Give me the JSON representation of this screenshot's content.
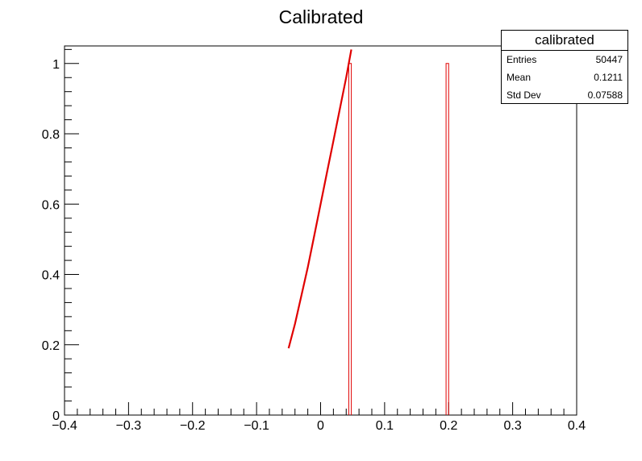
{
  "chart_data": {
    "type": "histogram",
    "title": "Calibrated",
    "xlabel": "",
    "ylabel": "",
    "xlim": [
      -0.4,
      0.4
    ],
    "ylim": [
      0,
      1.05
    ],
    "x_ticks": [
      -0.4,
      -0.3,
      -0.2,
      -0.1,
      0,
      0.1,
      0.2,
      0.3,
      0.4
    ],
    "x_tick_labels": [
      "−0.4",
      "−0.3",
      "−0.2",
      "−0.1",
      "0",
      "0.1",
      "0.2",
      "0.3",
      "0.4"
    ],
    "y_ticks": [
      0,
      0.2,
      0.4,
      0.6,
      0.8,
      1
    ],
    "y_tick_labels": [
      "0",
      "0.2",
      "0.4",
      "0.6",
      "0.8",
      "1"
    ],
    "bins": [
      {
        "x_low": 0.044,
        "x_high": 0.048,
        "value": 1
      },
      {
        "x_low": 0.196,
        "x_high": 0.2,
        "value": 1
      }
    ],
    "fit_curve": {
      "x": [
        -0.05,
        -0.04,
        -0.03,
        -0.02,
        -0.01,
        0,
        0.01,
        0.02,
        0.03,
        0.04,
        0.048
      ],
      "y": [
        0.19,
        0.26,
        0.34,
        0.42,
        0.51,
        0.6,
        0.69,
        0.78,
        0.87,
        0.96,
        1.04
      ]
    },
    "color": "#e00000",
    "stats": {
      "name": "calibrated",
      "rows": [
        {
          "label": "Entries",
          "value": "50447"
        },
        {
          "label": "Mean",
          "value": "0.1211"
        },
        {
          "label": "Std Dev",
          "value": "0.07588"
        }
      ]
    }
  }
}
